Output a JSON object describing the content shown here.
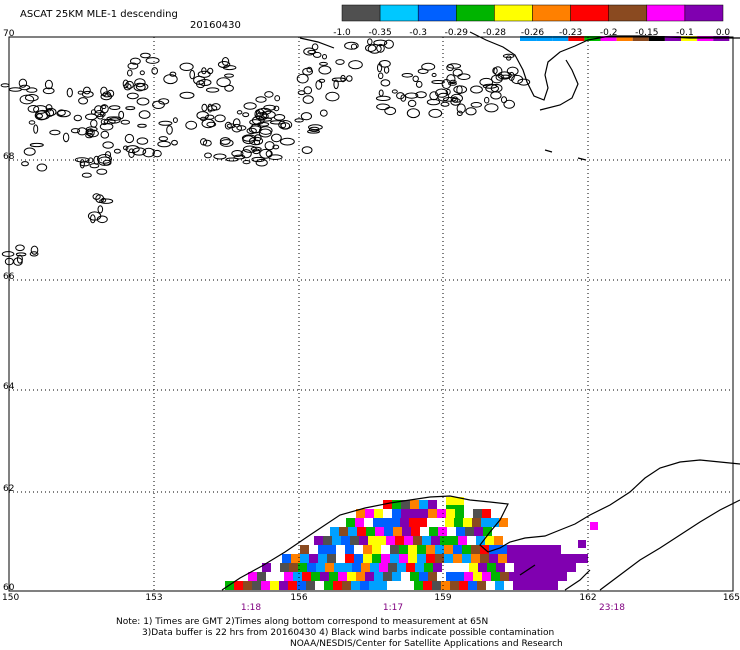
{
  "header": {
    "title": "ASCAT 25KM MLE-1 descending",
    "date": "20160430"
  },
  "colorbar": {
    "swatches": [
      "#505050",
      "#00c8ff",
      "#0060ff",
      "#00b400",
      "#ffff00",
      "#ff8000",
      "#ff0000",
      "#8a4a20",
      "#ff00ff",
      "#8000b0"
    ],
    "labels": [
      "-1.0",
      "-0.35",
      "-0.3",
      "-0.29",
      "-0.28",
      "-0.26",
      "-0.23",
      "-0.2",
      "-0.15",
      "-0.1",
      "0.0"
    ],
    "small_bar": [
      "#00a0ff",
      "#00a0ff",
      "#00a0ff",
      "#ff0000",
      "#00c000",
      "#ff00ff",
      "#ff8000",
      "#8a4a20",
      "#000000",
      "#8000b0",
      "#ffff00",
      "#ff00ff",
      "#8000b0"
    ]
  },
  "map": {
    "lat_labels": [
      "70",
      "68",
      "66",
      "64",
      "62",
      "60"
    ],
    "lon_labels": [
      "150",
      "153",
      "156",
      "159",
      "162",
      "165"
    ],
    "times": [
      "1:18",
      "1:17",
      "23:18"
    ],
    "time_color": "#800080",
    "grid": "dotted",
    "palette": [
      "#ff0000",
      "#ff00ff",
      "#8000b0",
      "#ff8000",
      "#00a0ff",
      "#0060ff",
      "#00b400",
      "#8a4a20",
      "#505050",
      "#ffff00",
      "#ffffff",
      "#ffffff"
    ]
  },
  "notes": {
    "line1": "Note: 1) Times are GMT 2)Times along bottom correspond to measurement at 65N",
    "line2": "3)Data buffer is 22 hrs from 20160430 4) Black wind barbs indicate possible contamination",
    "line3": "NOAA/NESDIS/Center for Satellite Applications and Research"
  }
}
